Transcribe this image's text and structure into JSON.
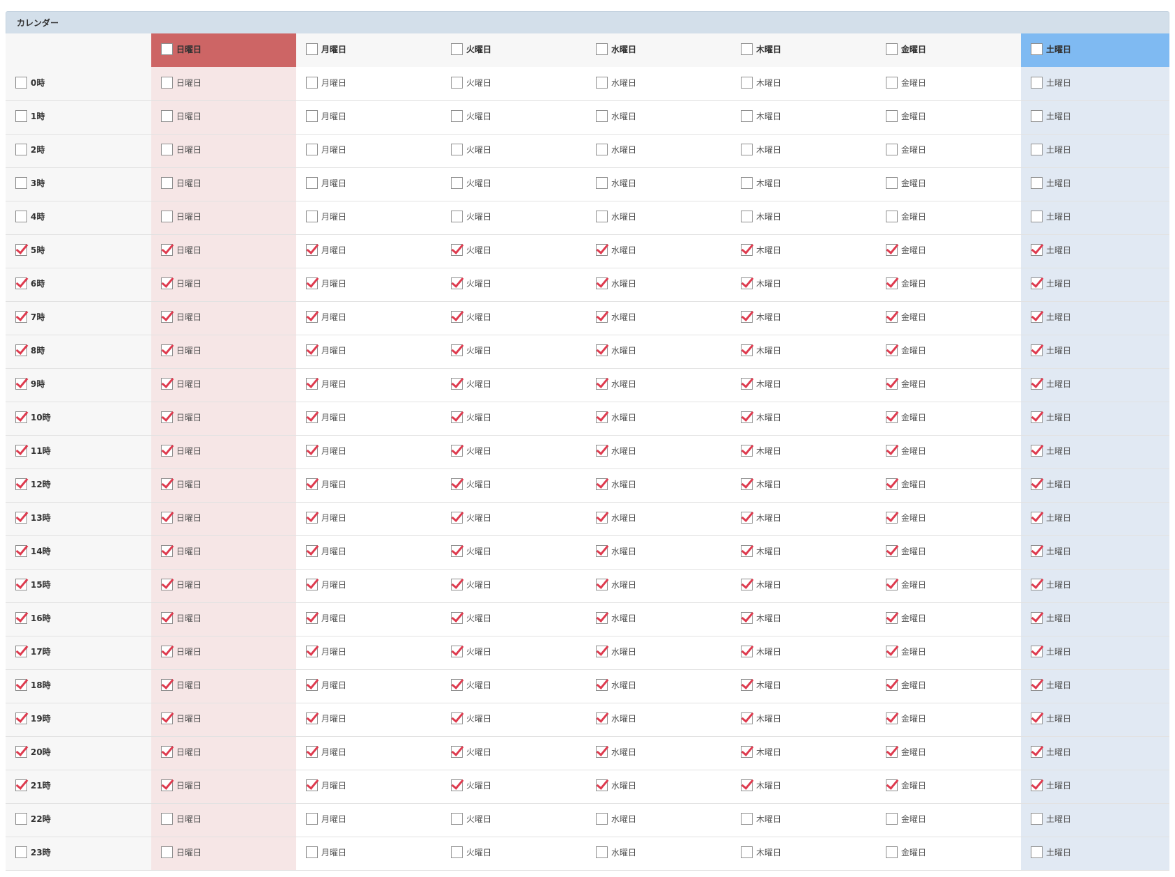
{
  "panel": {
    "title": "カレンダー"
  },
  "days": [
    "日曜日",
    "月曜日",
    "火曜日",
    "水曜日",
    "木曜日",
    "金曜日",
    "土曜日"
  ],
  "header_checked": [
    false,
    false,
    false,
    false,
    false,
    false,
    false
  ],
  "colors": {
    "sunday_header": "#cd6565",
    "saturday_header": "#7fbaf2",
    "check_mark": "#de3a4e"
  },
  "hours": [
    {
      "label": "0時",
      "checked": false
    },
    {
      "label": "1時",
      "checked": false
    },
    {
      "label": "2時",
      "checked": false
    },
    {
      "label": "3時",
      "checked": false
    },
    {
      "label": "4時",
      "checked": false
    },
    {
      "label": "5時",
      "checked": true
    },
    {
      "label": "6時",
      "checked": true
    },
    {
      "label": "7時",
      "checked": true
    },
    {
      "label": "8時",
      "checked": true
    },
    {
      "label": "9時",
      "checked": true
    },
    {
      "label": "10時",
      "checked": true
    },
    {
      "label": "11時",
      "checked": true
    },
    {
      "label": "12時",
      "checked": true
    },
    {
      "label": "13時",
      "checked": true
    },
    {
      "label": "14時",
      "checked": true
    },
    {
      "label": "15時",
      "checked": true
    },
    {
      "label": "16時",
      "checked": true
    },
    {
      "label": "17時",
      "checked": true
    },
    {
      "label": "18時",
      "checked": true
    },
    {
      "label": "19時",
      "checked": true
    },
    {
      "label": "20時",
      "checked": true
    },
    {
      "label": "21時",
      "checked": true
    },
    {
      "label": "22時",
      "checked": false
    },
    {
      "label": "23時",
      "checked": false
    }
  ]
}
